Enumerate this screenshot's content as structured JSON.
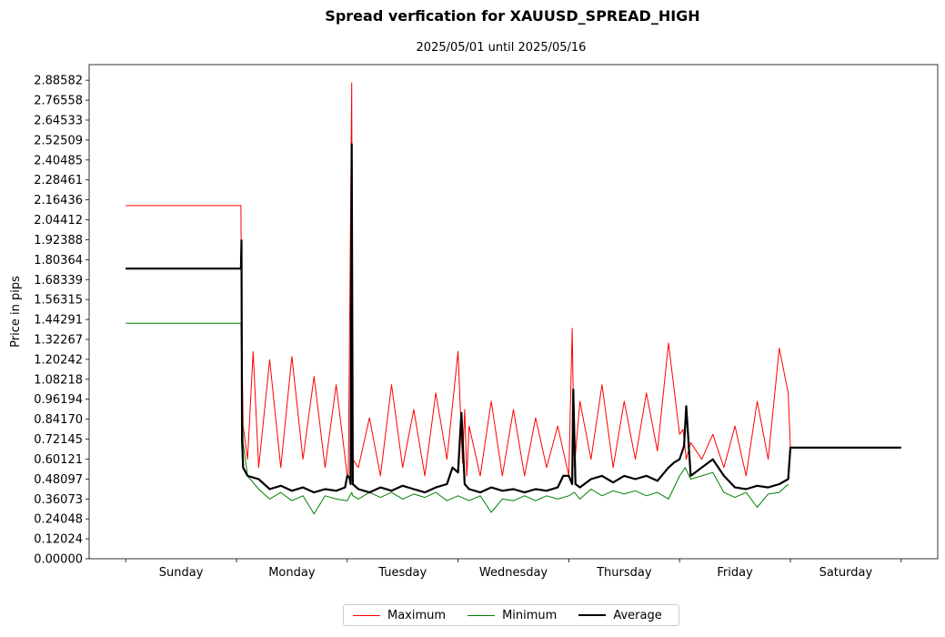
{
  "chart_data": {
    "type": "line",
    "title": "Spread verfication for XAUUSD_SPREAD_HIGH",
    "subtitle": "2025/05/01 until 2025/05/16",
    "xlabel": "",
    "ylabel": "Price in pips",
    "ylim": [
      0,
      2.98
    ],
    "yticks": [
      "0.00000",
      "0.12024",
      "0.24048",
      "0.36073",
      "0.48097",
      "0.60121",
      "0.72145",
      "0.84170",
      "0.96194",
      "1.08218",
      "1.20242",
      "1.32267",
      "1.44291",
      "1.56315",
      "1.68339",
      "1.80364",
      "1.92388",
      "2.04412",
      "2.16436",
      "2.28461",
      "2.40485",
      "2.52509",
      "2.64533",
      "2.76558",
      "2.88582"
    ],
    "categories": [
      "Sunday",
      "Monday",
      "Tuesday",
      "Wednesday",
      "Thursday",
      "Friday",
      "Saturday"
    ],
    "xlim": [
      -0.33,
      7.33
    ],
    "legend_position": "bottom-center",
    "grid": false,
    "series": [
      {
        "name": "Maximum",
        "color": "#ff0000",
        "width": 1,
        "x": [
          0,
          1.04,
          1.045,
          1.06,
          1.1,
          1.15,
          1.2,
          1.3,
          1.4,
          1.5,
          1.6,
          1.7,
          1.8,
          1.9,
          2.0,
          2.01,
          2.04,
          2.05,
          2.1,
          2.2,
          2.3,
          2.4,
          2.5,
          2.6,
          2.7,
          2.8,
          2.9,
          3.0,
          3.04,
          3.06,
          3.08,
          3.1,
          3.2,
          3.3,
          3.4,
          3.5,
          3.6,
          3.7,
          3.8,
          3.9,
          4.0,
          4.03,
          4.05,
          4.1,
          4.2,
          4.3,
          4.4,
          4.5,
          4.6,
          4.7,
          4.8,
          4.9,
          5.0,
          5.03,
          5.06,
          5.1,
          5.2,
          5.3,
          5.4,
          5.5,
          5.6,
          5.7,
          5.8,
          5.9,
          5.98,
          6.0
        ],
        "y": [
          2.13,
          2.13,
          1.49,
          0.8,
          0.6,
          1.25,
          0.55,
          1.2,
          0.55,
          1.22,
          0.6,
          1.1,
          0.55,
          1.05,
          0.5,
          0.5,
          2.87,
          0.6,
          0.55,
          0.85,
          0.5,
          1.05,
          0.55,
          0.9,
          0.5,
          1.0,
          0.6,
          1.25,
          0.58,
          0.9,
          0.5,
          0.8,
          0.5,
          0.95,
          0.5,
          0.9,
          0.5,
          0.85,
          0.55,
          0.8,
          0.5,
          1.39,
          0.55,
          0.95,
          0.6,
          1.05,
          0.55,
          0.95,
          0.6,
          1.0,
          0.65,
          1.3,
          0.75,
          0.78,
          0.6,
          0.7,
          0.6,
          0.75,
          0.55,
          0.8,
          0.5,
          0.95,
          0.6,
          1.27,
          1.0,
          0.67
        ]
      },
      {
        "name": "Minimum",
        "color": "#008000",
        "width": 1,
        "x": [
          0,
          1.04,
          1.06,
          1.1,
          1.2,
          1.3,
          1.4,
          1.5,
          1.6,
          1.7,
          1.8,
          1.9,
          2.0,
          2.04,
          2.05,
          2.1,
          2.2,
          2.3,
          2.4,
          2.5,
          2.6,
          2.7,
          2.8,
          2.9,
          3.0,
          3.1,
          3.2,
          3.3,
          3.4,
          3.5,
          3.6,
          3.7,
          3.8,
          3.9,
          4.0,
          4.05,
          4.1,
          4.2,
          4.3,
          4.4,
          4.5,
          4.6,
          4.7,
          4.8,
          4.9,
          5.0,
          5.05,
          5.1,
          5.2,
          5.3,
          5.4,
          5.5,
          5.6,
          5.7,
          5.8,
          5.9,
          5.98
        ],
        "y": [
          1.42,
          1.42,
          0.7,
          0.5,
          0.42,
          0.36,
          0.4,
          0.35,
          0.38,
          0.27,
          0.38,
          0.36,
          0.35,
          0.4,
          0.38,
          0.36,
          0.4,
          0.37,
          0.4,
          0.36,
          0.39,
          0.37,
          0.4,
          0.35,
          0.38,
          0.35,
          0.38,
          0.28,
          0.36,
          0.35,
          0.38,
          0.35,
          0.38,
          0.36,
          0.38,
          0.4,
          0.36,
          0.42,
          0.38,
          0.41,
          0.39,
          0.41,
          0.38,
          0.4,
          0.36,
          0.5,
          0.55,
          0.48,
          0.5,
          0.52,
          0.4,
          0.37,
          0.4,
          0.31,
          0.39,
          0.4,
          0.45
        ]
      },
      {
        "name": "Average",
        "color": "#000000",
        "width": 2.2,
        "x": [
          0,
          1.04,
          1.045,
          1.05,
          1.06,
          1.1,
          1.2,
          1.3,
          1.4,
          1.5,
          1.6,
          1.7,
          1.8,
          1.9,
          1.98,
          2.0,
          2.02,
          2.03,
          2.04,
          2.05,
          2.1,
          2.2,
          2.3,
          2.4,
          2.5,
          2.6,
          2.7,
          2.8,
          2.9,
          2.95,
          3.0,
          3.03,
          3.06,
          3.1,
          3.2,
          3.3,
          3.4,
          3.5,
          3.6,
          3.7,
          3.8,
          3.9,
          3.95,
          4.0,
          4.03,
          4.04,
          4.06,
          4.1,
          4.2,
          4.3,
          4.4,
          4.5,
          4.6,
          4.7,
          4.8,
          4.9,
          4.95,
          5.0,
          5.04,
          5.06,
          5.1,
          5.2,
          5.3,
          5.4,
          5.5,
          5.6,
          5.7,
          5.8,
          5.9,
          5.98,
          6.0,
          7.0
        ],
        "y": [
          1.75,
          1.75,
          1.92,
          0.72,
          0.55,
          0.5,
          0.48,
          0.42,
          0.44,
          0.41,
          0.43,
          0.4,
          0.42,
          0.41,
          0.43,
          0.5,
          0.49,
          0.45,
          2.5,
          0.45,
          0.42,
          0.4,
          0.43,
          0.41,
          0.44,
          0.42,
          0.4,
          0.43,
          0.45,
          0.55,
          0.52,
          0.88,
          0.45,
          0.42,
          0.4,
          0.43,
          0.41,
          0.42,
          0.4,
          0.42,
          0.41,
          0.43,
          0.5,
          0.5,
          0.45,
          1.02,
          0.45,
          0.43,
          0.48,
          0.5,
          0.46,
          0.5,
          0.48,
          0.5,
          0.47,
          0.55,
          0.58,
          0.6,
          0.68,
          0.92,
          0.5,
          0.55,
          0.6,
          0.5,
          0.43,
          0.42,
          0.44,
          0.43,
          0.45,
          0.48,
          0.67,
          0.67
        ]
      }
    ]
  }
}
